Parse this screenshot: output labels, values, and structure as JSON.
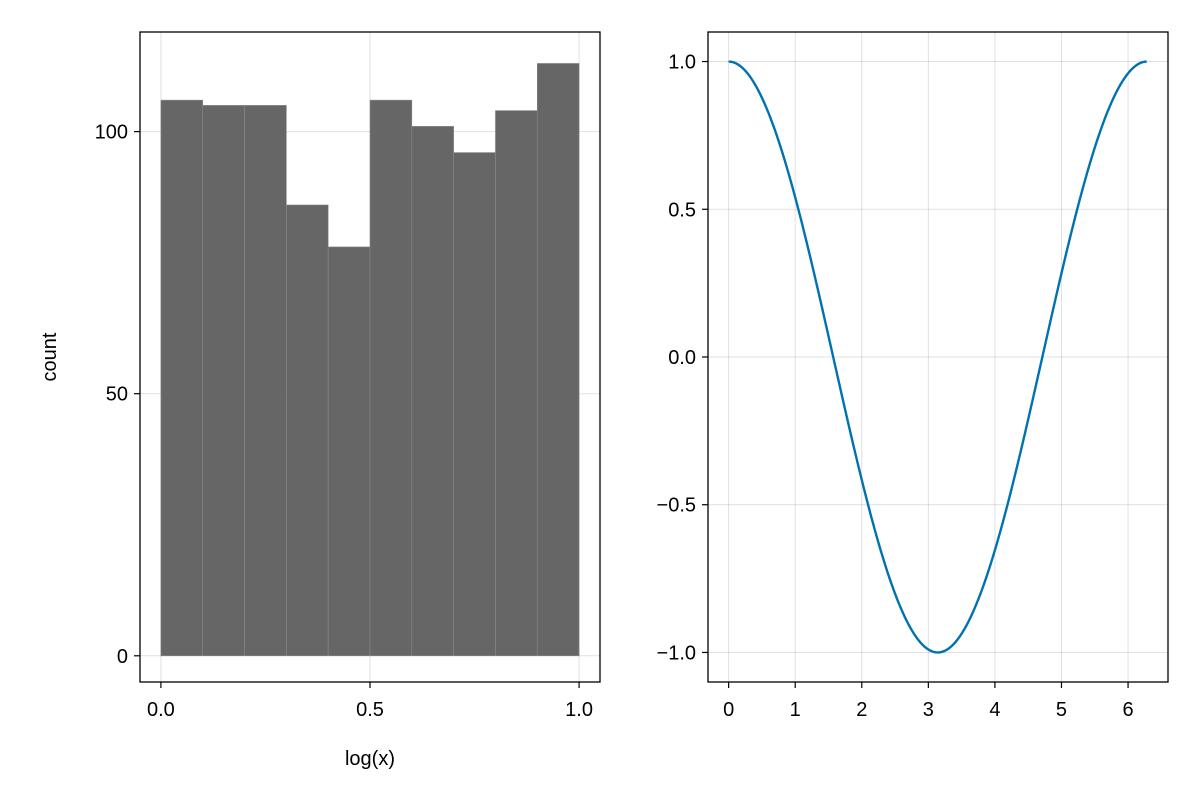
{
  "chart_data": [
    {
      "type": "bar",
      "title": "",
      "xlabel": "log(x)",
      "ylabel": "count",
      "bin_edges": [
        0.0,
        0.1,
        0.2,
        0.3,
        0.4,
        0.5,
        0.6,
        0.7,
        0.8,
        0.9,
        1.0
      ],
      "values": [
        106,
        105,
        105,
        86,
        78,
        106,
        101,
        96,
        104,
        113
      ],
      "xlim": [
        -0.05,
        1.05
      ],
      "ylim": [
        -5,
        119
      ],
      "xticks": [
        0.0,
        0.5,
        1.0
      ],
      "xtick_labels": [
        "0.0",
        "0.5",
        "1.0"
      ],
      "yticks": [
        0,
        50,
        100
      ],
      "ytick_labels": [
        "0",
        "50",
        "100"
      ],
      "bar_color": "#666666",
      "grid": true
    },
    {
      "type": "line",
      "title": "",
      "xlabel": "",
      "ylabel": "",
      "function": "cos(x)",
      "x": [
        0,
        0.5,
        1.0,
        1.5,
        2.0,
        2.5,
        3.0,
        3.14,
        3.5,
        4.0,
        4.5,
        5.0,
        5.5,
        6.0,
        6.28
      ],
      "y": [
        1.0,
        0.878,
        0.54,
        0.071,
        -0.416,
        -0.801,
        -0.99,
        -1.0,
        -0.936,
        -0.654,
        -0.211,
        0.284,
        0.709,
        0.96,
        1.0
      ],
      "xlim": [
        -0.31,
        6.6
      ],
      "ylim": [
        -1.1,
        1.1
      ],
      "xticks": [
        0,
        1,
        2,
        3,
        4,
        5,
        6
      ],
      "xtick_labels": [
        "0",
        "1",
        "2",
        "3",
        "4",
        "5",
        "6"
      ],
      "yticks": [
        -1.0,
        -0.5,
        0.0,
        0.5,
        1.0
      ],
      "ytick_labels": [
        "−1.0",
        "−0.5",
        "0.0",
        "0.5",
        "1.0"
      ],
      "line_color": "#0072b2",
      "grid": true
    }
  ]
}
